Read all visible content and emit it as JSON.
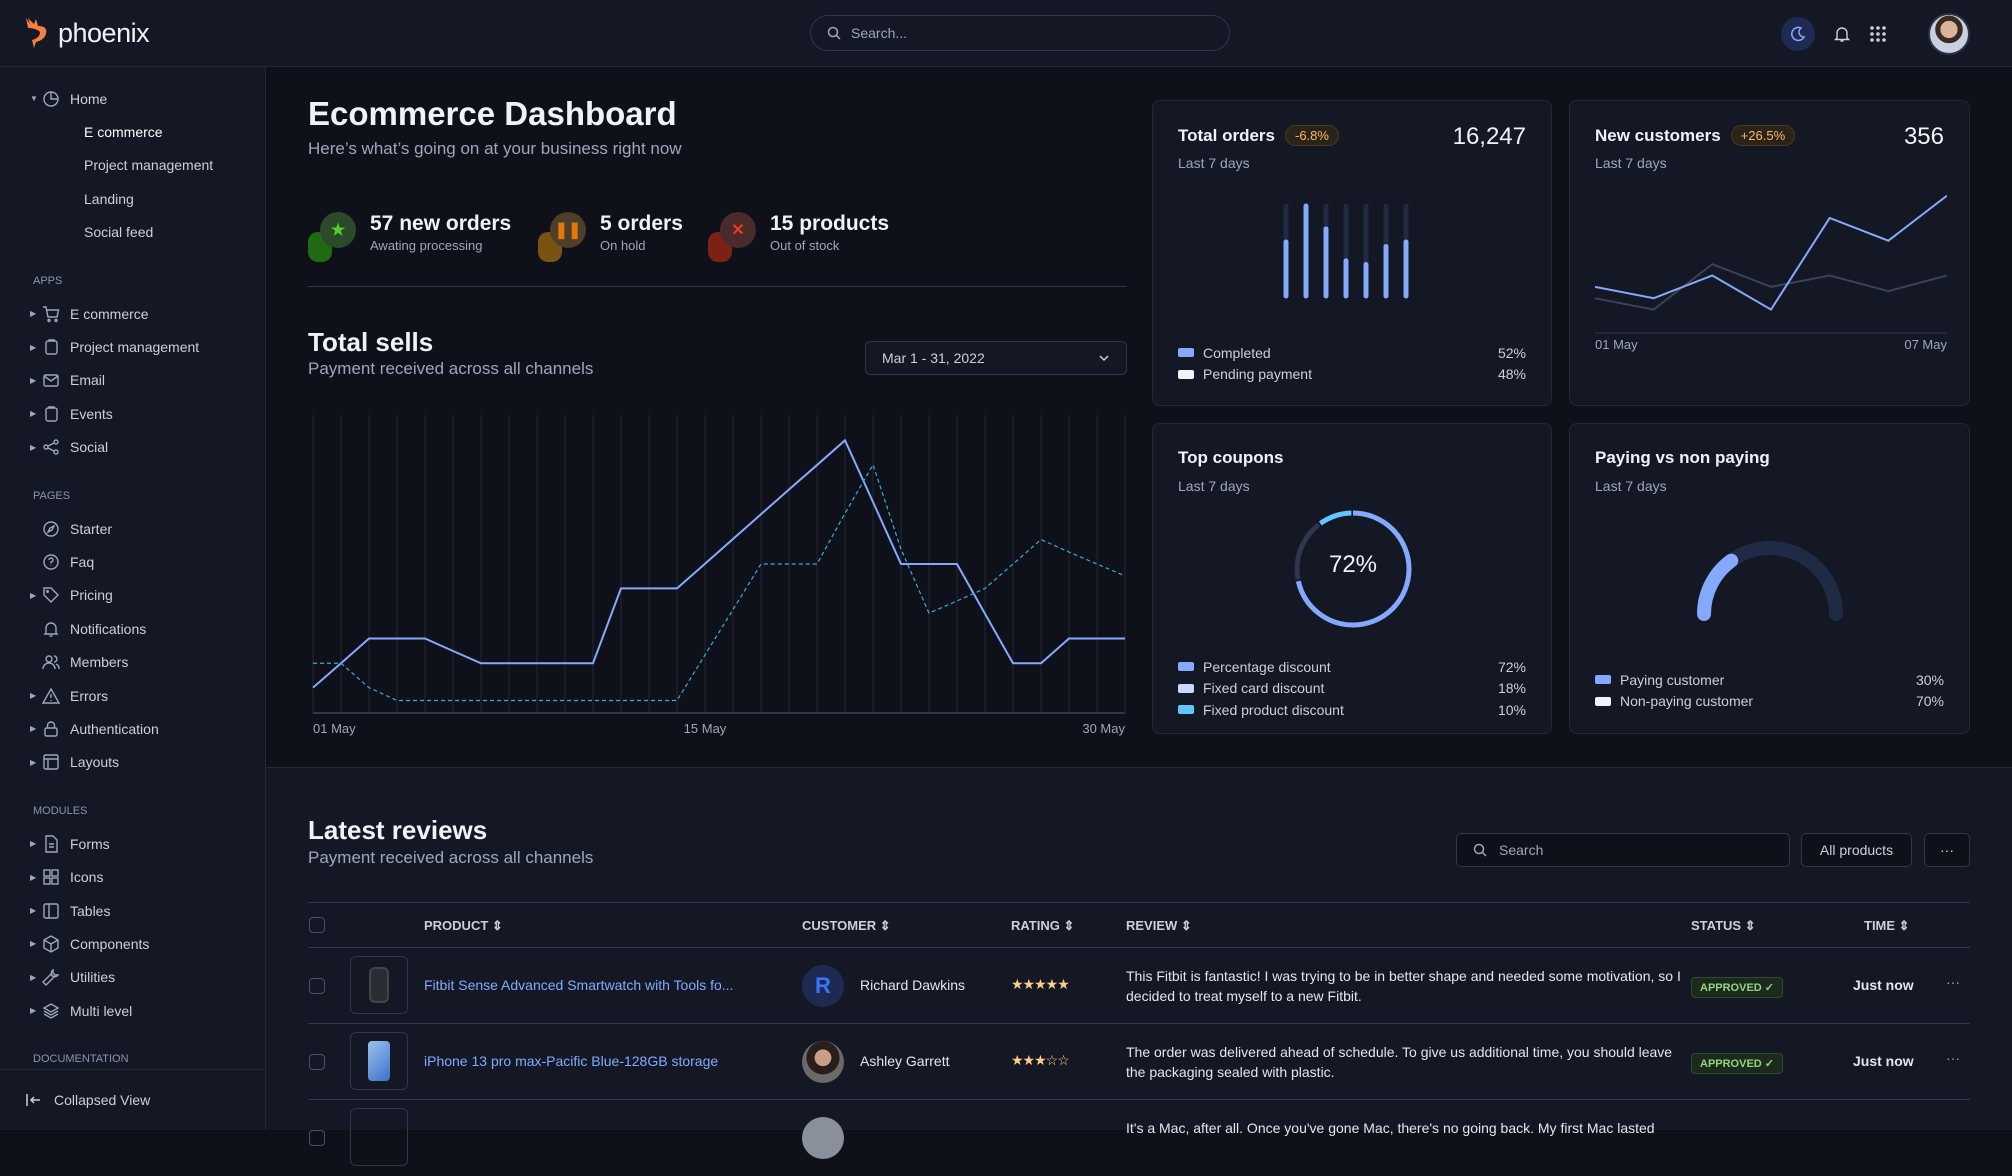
{
  "header": {
    "brand": "phoenix",
    "search_placeholder": "Search...",
    "icons": [
      "moon-icon",
      "bell-icon",
      "apps-grid-icon"
    ]
  },
  "sidebar": {
    "groups": [
      {
        "label": "",
        "items": [
          {
            "label": "Home",
            "icon": "pie-chart-icon",
            "caret": "down"
          },
          {
            "label": "E commerce",
            "sub": true,
            "active": true
          },
          {
            "label": "Project management",
            "sub": true
          },
          {
            "label": "Landing",
            "sub": true
          },
          {
            "label": "Social feed",
            "sub": true
          }
        ]
      },
      {
        "label": "APPS",
        "items": [
          {
            "label": "E commerce",
            "icon": "cart-icon",
            "caret": "right"
          },
          {
            "label": "Project management",
            "icon": "clipboard-icon",
            "caret": "right"
          },
          {
            "label": "Email",
            "icon": "mail-icon",
            "caret": "right"
          },
          {
            "label": "Events",
            "icon": "clipboard-icon",
            "caret": "right"
          },
          {
            "label": "Social",
            "icon": "share-icon",
            "caret": "right"
          }
        ]
      },
      {
        "label": "PAGES",
        "items": [
          {
            "label": "Starter",
            "icon": "compass-icon"
          },
          {
            "label": "Faq",
            "icon": "help-circle-icon"
          },
          {
            "label": "Pricing",
            "icon": "tag-icon",
            "caret": "right"
          },
          {
            "label": "Notifications",
            "icon": "bell-icon"
          },
          {
            "label": "Members",
            "icon": "users-icon"
          },
          {
            "label": "Errors",
            "icon": "alert-triangle-icon",
            "caret": "right"
          },
          {
            "label": "Authentication",
            "icon": "lock-icon",
            "caret": "right"
          },
          {
            "label": "Layouts",
            "icon": "layout-icon",
            "caret": "right"
          }
        ]
      },
      {
        "label": "MODULES",
        "items": [
          {
            "label": "Forms",
            "icon": "file-text-icon",
            "caret": "right"
          },
          {
            "label": "Icons",
            "icon": "grid-icon",
            "caret": "right"
          },
          {
            "label": "Tables",
            "icon": "columns-icon",
            "caret": "right"
          },
          {
            "label": "Components",
            "icon": "package-icon",
            "caret": "right"
          },
          {
            "label": "Utilities",
            "icon": "tool-icon",
            "caret": "right"
          },
          {
            "label": "Multi level",
            "icon": "layers-icon",
            "caret": "right"
          }
        ]
      },
      {
        "label": "DOCUMENTATION",
        "items": []
      }
    ],
    "footer": "Collapsed View"
  },
  "main": {
    "title": "Ecommerce Dashboard",
    "subtitle": "Here’s what’s going on at your business right now",
    "stats": [
      {
        "value": "57 new orders",
        "label": "Awating processing",
        "color": "#25b003",
        "icon": "star-icon"
      },
      {
        "value": "5 orders",
        "label": "On hold",
        "color": "#e5780b",
        "icon": "pause-icon"
      },
      {
        "value": "15 products",
        "label": "Out of stock",
        "color": "#ec1f00",
        "icon": "x-icon"
      }
    ],
    "sells": {
      "title": "Total sells",
      "subtitle": "Payment received across all channels",
      "date_range": "Mar 1 - 31, 2022"
    }
  },
  "cards": {
    "total_orders": {
      "title": "Total orders",
      "badge": "-6.8%",
      "value": "16,247",
      "sub": "Last 7 days",
      "legend": [
        {
          "label": "Completed",
          "value": "52%",
          "color": "#85a9ff"
        },
        {
          "label": "Pending payment",
          "value": "48%",
          "color": "#eff2f6"
        }
      ]
    },
    "new_customers": {
      "title": "New customers",
      "badge": "+26.5%",
      "value": "356",
      "sub": "Last 7 days"
    },
    "top_coupons": {
      "title": "Top coupons",
      "sub": "Last 7 days",
      "center": "72%",
      "legend": [
        {
          "label": "Percentage discount",
          "value": "72%",
          "color": "#85a9ff"
        },
        {
          "label": "Fixed card discount",
          "value": "18%",
          "color": "#c7d7fe"
        },
        {
          "label": "Fixed product discount",
          "value": "10%",
          "color": "#60c6ff"
        }
      ]
    },
    "paying": {
      "title": "Paying vs non paying",
      "sub": "Last 7 days",
      "legend": [
        {
          "label": "Paying customer",
          "value": "30%",
          "color": "#85a9ff"
        },
        {
          "label": "Non-paying customer",
          "value": "70%",
          "color": "#eff2f6"
        }
      ]
    }
  },
  "chart_data": [
    {
      "type": "line",
      "x": [
        "01 May",
        "02 May",
        "03 May",
        "04 May",
        "05 May",
        "06 May",
        "07 May",
        "08 May",
        "09 May",
        "10 May",
        "11 May",
        "12 May",
        "13 May",
        "14 May",
        "15 May",
        "16 May",
        "17 May",
        "18 May",
        "19 May",
        "20 May",
        "21 May",
        "22 May",
        "23 May",
        "24 May",
        "25 May",
        "26 May",
        "27 May",
        "28 May",
        "29 May",
        "30 May"
      ],
      "tick_labels": [
        "01 May",
        "15 May",
        "30 May"
      ],
      "grid": "vertical",
      "series": [
        {
          "style": "solid",
          "color": "#85a9ff",
          "values": [
            8.5,
            16.7,
            25,
            25,
            25,
            20.8,
            16.7,
            16.7,
            16.7,
            16.7,
            16.7,
            41.8,
            41.8,
            41.8,
            50.1,
            58.4,
            66.7,
            75,
            83.2,
            91.5,
            70.8,
            50,
            50,
            50,
            33.3,
            16.7,
            16.7,
            25,
            25,
            25
          ]
        },
        {
          "style": "dashed",
          "color": "#3fa8d8",
          "values": [
            16.7,
            16.7,
            8.5,
            4.2,
            4.2,
            4.2,
            4.2,
            4.2,
            4.2,
            4.2,
            4.2,
            4.2,
            4.2,
            4.2,
            19.5,
            34.7,
            50,
            50,
            50,
            67,
            83.3,
            55,
            33.5,
            37.6,
            41.8,
            50,
            58.2,
            54,
            50,
            46
          ]
        }
      ],
      "ylim": [
        0,
        100
      ]
    },
    {
      "type": "bar",
      "categories": [
        "1",
        "2",
        "3",
        "4",
        "5",
        "6",
        "7"
      ],
      "values": [
        60,
        100,
        74.5,
        39,
        35,
        55,
        60
      ],
      "ylim": [
        0,
        100
      ]
    },
    {
      "type": "line",
      "x": [
        "01 May",
        "02 May",
        "03 May",
        "04 May",
        "05 May",
        "06 May",
        "07 May"
      ],
      "tick_labels": [
        "01 May",
        "07 May"
      ],
      "series": [
        {
          "color": "#85a9ff",
          "values": [
            32.5,
            24.5,
            40.5,
            16.5,
            81,
            65,
            96.75
          ]
        },
        {
          "color": "#3a4257",
          "values": [
            24.5,
            16.5,
            48.5,
            32.5,
            40.5,
            29.5,
            40.5
          ]
        }
      ],
      "ylim": [
        0,
        100
      ]
    },
    {
      "type": "pie",
      "variant": "donut",
      "values": [
        72,
        18,
        10
      ],
      "colors": [
        "#85a9ff",
        "#31374a",
        "#60c6ff"
      ]
    },
    {
      "type": "pie",
      "variant": "half-gauge",
      "values": [
        30,
        70
      ],
      "colors": [
        "#85a9ff",
        "#1f2a44"
      ]
    }
  ],
  "reviews": {
    "title": "Latest reviews",
    "subtitle": "Payment received across all channels",
    "search_placeholder": "Search",
    "filter_label": "All products",
    "more_label": "···",
    "columns": [
      "PRODUCT",
      "CUSTOMER",
      "RATING",
      "REVIEW",
      "STATUS",
      "TIME"
    ],
    "rows": [
      {
        "product": "Fitbit Sense Advanced Smartwatch with Tools fo...",
        "customer": "Richard Dawkins",
        "initial": "R",
        "rating": 5,
        "stars": "★★★★★",
        "review": "This Fitbit is fantastic! I was trying to be in better shape and needed some motivation, so I decided to treat myself to a new Fitbit.",
        "status": "APPROVED ✓",
        "time": "Just now"
      },
      {
        "product": "iPhone 13 pro max-Pacific Blue-128GB storage",
        "customer": "Ashley Garrett",
        "rating": 3,
        "stars": "★★★☆☆",
        "review": "The order was delivered ahead of schedule. To give us additional time, you should leave the packaging sealed with plastic.",
        "status": "APPROVED ✓",
        "time": "Just now"
      },
      {
        "review": "It's a Mac, after all. Once you've gone Mac, there's no going back. My first Mac lasted"
      }
    ]
  }
}
